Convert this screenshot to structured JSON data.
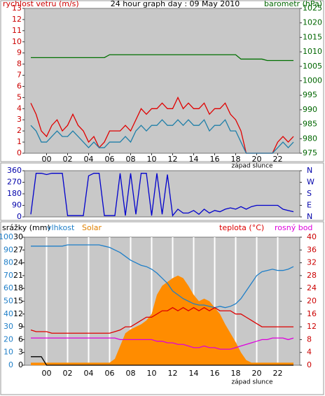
{
  "chart_data": [
    {
      "type": "line",
      "title": "24 hour graph day : 09 May 2010",
      "ylabel": "rychlost vetru (m/s)",
      "y2label": "barometr (hPa)",
      "annotation": "západ slunce",
      "x": [
        -1.5,
        -1,
        -0.5,
        0,
        0.5,
        1,
        1.5,
        2,
        2.5,
        3,
        3.5,
        4,
        4.5,
        5,
        5.5,
        6,
        6.5,
        7,
        7.5,
        8,
        8.5,
        9,
        9.5,
        10,
        10.5,
        11,
        11.5,
        12,
        12.5,
        13,
        13.5,
        14,
        14.5,
        15,
        15.5,
        16,
        16.5,
        17,
        17.5,
        18,
        18.5,
        19,
        19.5,
        20,
        20.5,
        21,
        21.5,
        22,
        22.5,
        23,
        23.5
      ],
      "xlim": [
        -2.1,
        24.1
      ],
      "xticks": [
        {
          "value": 0,
          "label": "00"
        },
        {
          "value": 2,
          "label": "02"
        },
        {
          "value": 4,
          "label": "04"
        },
        {
          "value": 6,
          "label": "06"
        },
        {
          "value": 8,
          "label": "08"
        },
        {
          "value": 10,
          "label": "10"
        },
        {
          "value": 12,
          "label": "12"
        },
        {
          "value": 14,
          "label": "14"
        },
        {
          "value": 16,
          "label": "16"
        },
        {
          "value": 18,
          "label": "18"
        },
        {
          "value": 20,
          "label": "20"
        },
        {
          "value": 22,
          "label": "22"
        }
      ],
      "ylim": [
        0,
        13
      ],
      "yticks": [
        0,
        1,
        2,
        3,
        4,
        5,
        6,
        7,
        8,
        9,
        10,
        11,
        12,
        13
      ],
      "ytick_color": "#cc0000",
      "y2lim": [
        975,
        1025
      ],
      "y2ticks": [
        975,
        980,
        985,
        990,
        995,
        1000,
        1005,
        1010,
        1015,
        1020,
        1025
      ],
      "y2tick_color": "#006600",
      "series": [
        {
          "color": "#e00000",
          "axis": "y",
          "values": [
            4.5,
            3.5,
            2,
            1.5,
            2.5,
            3,
            2,
            2.5,
            3.5,
            2.5,
            2,
            1,
            1.5,
            0.5,
            1,
            2,
            2,
            2,
            2.5,
            2,
            3,
            4,
            3.5,
            4,
            4,
            4.5,
            4,
            4,
            5,
            4,
            4.5,
            4,
            4,
            4.5,
            3.5,
            4,
            4,
            4.5,
            3.5,
            3,
            2,
            0,
            0,
            0,
            0,
            0,
            0,
            1,
            1.5,
            1,
            1.5
          ]
        },
        {
          "color": "#1f7fa8",
          "axis": "y",
          "values": [
            2.5,
            2,
            1,
            1,
            1.5,
            2,
            1.5,
            1.5,
            2,
            1.5,
            1,
            0.5,
            1,
            0.5,
            0.5,
            1,
            1,
            1,
            1.5,
            1,
            2,
            2.5,
            2,
            2.5,
            2.5,
            3,
            2.5,
            2.5,
            3,
            2.5,
            3,
            2.5,
            2.5,
            3,
            2,
            2.5,
            2.5,
            3,
            2,
            2,
            1,
            0,
            0,
            0,
            0,
            0,
            0,
            0.5,
            1,
            0.5,
            1
          ]
        },
        {
          "color": "#007000",
          "axis": "y2",
          "values": [
            1008,
            1008,
            1008,
            1008,
            1008,
            1008,
            1008,
            1008,
            1008,
            1008,
            1008,
            1008,
            1008,
            1008,
            1008,
            1009,
            1009,
            1009,
            1009,
            1009,
            1009,
            1009,
            1009,
            1009,
            1009,
            1009,
            1009,
            1009,
            1009,
            1009,
            1009,
            1009,
            1009,
            1009,
            1009,
            1009,
            1009,
            1009,
            1009,
            1009,
            1007.5,
            1007.5,
            1007.5,
            1007.5,
            1007.5,
            1007,
            1007,
            1007,
            1007,
            1007,
            1007
          ]
        }
      ]
    },
    {
      "type": "line",
      "x": [
        -1.5,
        -1,
        -0.5,
        0,
        0.5,
        1,
        1.5,
        2,
        2.5,
        3,
        3.5,
        4,
        4.5,
        5,
        5.5,
        6,
        6.5,
        7,
        7.5,
        8,
        8.5,
        9,
        9.5,
        10,
        10.5,
        11,
        11.5,
        12,
        12.5,
        13,
        13.5,
        14,
        14.5,
        15,
        15.5,
        16,
        16.5,
        17,
        17.5,
        18,
        18.5,
        19,
        19.5,
        20,
        20.5,
        21,
        21.5,
        22,
        22.5,
        23,
        23.5
      ],
      "xlim": [
        -2.1,
        24.1
      ],
      "ylim": [
        0,
        360
      ],
      "yticks": [
        0,
        90,
        180,
        270,
        360
      ],
      "ytick_color": "#0000aa",
      "y2lim": [
        0,
        360
      ],
      "y2ticks": [
        {
          "value": 0,
          "label": "N"
        },
        {
          "value": 90,
          "label": "E"
        },
        {
          "value": 180,
          "label": "S"
        },
        {
          "value": 270,
          "label": "W"
        },
        {
          "value": 360,
          "label": "N"
        }
      ],
      "y2tick_color": "#0000aa",
      "series": [
        {
          "color": "#0000cc",
          "axis": "y",
          "values": [
            20,
            340,
            340,
            330,
            340,
            340,
            340,
            10,
            10,
            10,
            10,
            320,
            340,
            340,
            10,
            10,
            10,
            340,
            10,
            340,
            20,
            340,
            340,
            10,
            340,
            20,
            330,
            10,
            60,
            30,
            30,
            50,
            20,
            60,
            30,
            50,
            40,
            60,
            70,
            60,
            80,
            60,
            80,
            90,
            90,
            90,
            90,
            90,
            60,
            50,
            40
          ]
        }
      ]
    },
    {
      "type": "line",
      "annotation": "západ slunce",
      "grid": "x",
      "x": [
        -1.5,
        -1,
        -0.5,
        0,
        0.5,
        1,
        1.5,
        2,
        2.5,
        3,
        3.5,
        4,
        4.5,
        5,
        5.5,
        6,
        6.5,
        7,
        7.5,
        8,
        8.5,
        9,
        9.5,
        10,
        10.5,
        11,
        11.5,
        12,
        12.5,
        13,
        13.5,
        14,
        14.5,
        15,
        15.5,
        16,
        16.5,
        17,
        17.5,
        18,
        18.5,
        19,
        19.5,
        20,
        20.5,
        21,
        21.5,
        22,
        22.5,
        23,
        23.5
      ],
      "xlim": [
        -2.1,
        24.1
      ],
      "xticks": [
        {
          "value": 0,
          "label": "00"
        },
        {
          "value": 2,
          "label": "02"
        },
        {
          "value": 4,
          "label": "04"
        },
        {
          "value": 6,
          "label": "06"
        },
        {
          "value": 8,
          "label": "08"
        },
        {
          "value": 10,
          "label": "10"
        },
        {
          "value": 12,
          "label": "12"
        },
        {
          "value": 14,
          "label": "14"
        },
        {
          "value": 16,
          "label": "16"
        },
        {
          "value": 18,
          "label": "18"
        },
        {
          "value": 20,
          "label": "20"
        },
        {
          "value": 22,
          "label": "22"
        }
      ],
      "ylim": [
        0,
        100
      ],
      "yticks": [
        0,
        10,
        20,
        30,
        40,
        50,
        60,
        70,
        80,
        90,
        100
      ],
      "ytick_color": "#1f7fc8",
      "y3lim": [
        0,
        30
      ],
      "y3ticks": [
        0,
        3,
        6,
        9,
        12,
        15,
        18,
        21,
        24,
        27,
        30
      ],
      "y3tick_color": "#000000",
      "y2lim": [
        0,
        40
      ],
      "y2ticks": [
        0,
        4,
        8,
        12,
        16,
        20,
        24,
        28,
        32,
        36,
        40
      ],
      "y2tick_color": "#cc0000",
      "series": [
        {
          "name": "srážky (mm)",
          "color": "#000000",
          "axis": "y3",
          "values": [
            2,
            2,
            2,
            0,
            0,
            0,
            0,
            0,
            0,
            0,
            0,
            0,
            0,
            0,
            0,
            0,
            0,
            0,
            0,
            0,
            0,
            0,
            0,
            0,
            0,
            0,
            0,
            0,
            0,
            0,
            0,
            0,
            0,
            0,
            0,
            0,
            0,
            0,
            0,
            0,
            0,
            0,
            0,
            0,
            0,
            0,
            0,
            0,
            0,
            0,
            0
          ]
        },
        {
          "name": "vlhkost",
          "color": "#1f7fc8",
          "axis": "y",
          "values": [
            93,
            93,
            93,
            93,
            93,
            93,
            93,
            94,
            94,
            94,
            94,
            94,
            94,
            94,
            93,
            92,
            90,
            88,
            85,
            82,
            80,
            78,
            77,
            75,
            72,
            68,
            64,
            58,
            55,
            52,
            50,
            48,
            47,
            47,
            46,
            45,
            46,
            45,
            46,
            48,
            52,
            58,
            64,
            70,
            73,
            74,
            75,
            74,
            74,
            75,
            77
          ]
        },
        {
          "name": "Solar",
          "color": "#ff8c00",
          "axis": "y",
          "fill": true,
          "values": [
            2,
            2,
            2,
            2,
            2,
            2,
            2,
            2,
            2,
            2,
            2,
            2,
            2,
            2,
            2,
            2,
            5,
            15,
            25,
            28,
            30,
            32,
            35,
            40,
            55,
            62,
            65,
            68,
            70,
            68,
            62,
            55,
            50,
            52,
            50,
            45,
            40,
            32,
            25,
            18,
            10,
            4,
            2,
            2,
            2,
            2,
            2,
            2,
            2,
            2,
            2
          ]
        },
        {
          "name": "teplota (°C)",
          "color": "#dd0000",
          "axis": "y2",
          "values": [
            11,
            10.5,
            10.5,
            10.5,
            10,
            10,
            10,
            10,
            10,
            10,
            10,
            10,
            10,
            10,
            10,
            10,
            10.5,
            11,
            12,
            12,
            13,
            14,
            15,
            15,
            16,
            17,
            17,
            18,
            17,
            18,
            17,
            18,
            17,
            18,
            17,
            18,
            17,
            17,
            17,
            16,
            16,
            15,
            14,
            13,
            12,
            12,
            12,
            12,
            12,
            12,
            12
          ]
        },
        {
          "name": "rosný bod",
          "color": "#dd00dd",
          "axis": "y2",
          "values": [
            8.5,
            8.5,
            8.5,
            8.5,
            8.5,
            8.5,
            8.5,
            8.5,
            8.5,
            8.5,
            8.5,
            8.5,
            8.5,
            8.5,
            8.5,
            8.5,
            8.5,
            8,
            8,
            8,
            8,
            8,
            8,
            8,
            7.5,
            7.5,
            7,
            7,
            6.5,
            6.5,
            6,
            5.5,
            5.5,
            6,
            5.5,
            5.5,
            5,
            5,
            5,
            5.5,
            6,
            6.5,
            7,
            7.5,
            8,
            8,
            8.5,
            8.5,
            8.5,
            8,
            8.5
          ]
        }
      ]
    }
  ]
}
